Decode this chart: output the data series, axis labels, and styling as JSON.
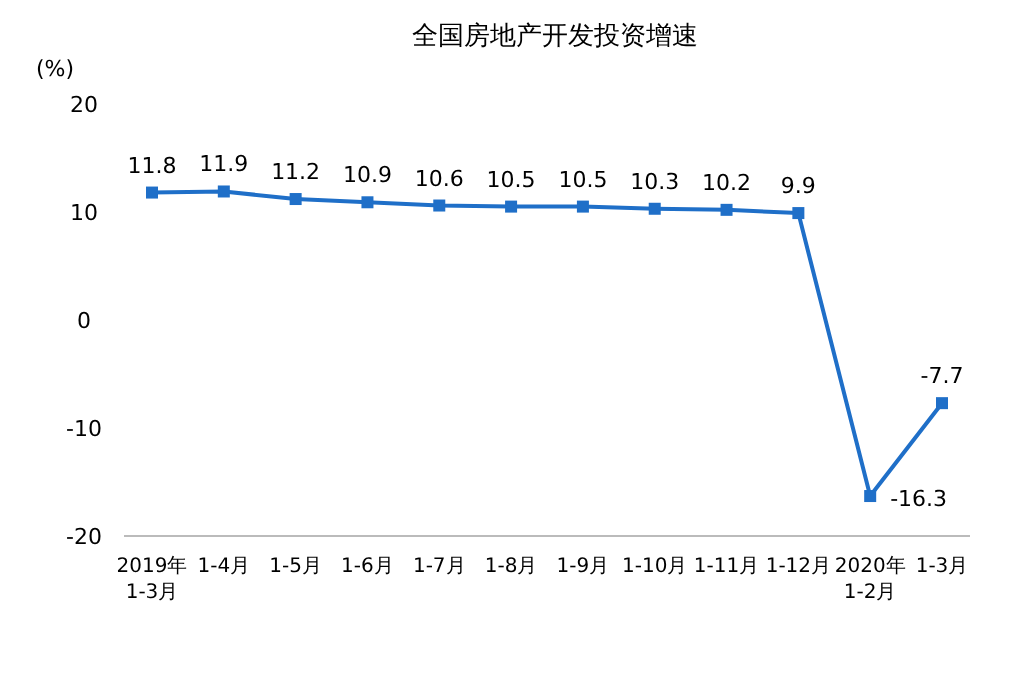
{
  "chart_data": {
    "type": "line",
    "title": "全国房地产开发投资增速",
    "ylabel": "(%)",
    "categories": [
      "2019年\n1-3月",
      "1-4月",
      "1-5月",
      "1-6月",
      "1-7月",
      "1-8月",
      "1-9月",
      "1-10月",
      "1-11月",
      "1-12月",
      "2020年\n1-2月",
      "1-3月"
    ],
    "series": [
      {
        "color": "#1f6fc8",
        "values": [
          11.8,
          11.9,
          11.2,
          10.9,
          10.6,
          10.5,
          10.5,
          10.3,
          10.2,
          9.9,
          -16.3,
          -7.7
        ]
      }
    ],
    "ylim": [
      -20,
      20
    ],
    "yticks": [
      -20,
      -10,
      0,
      10,
      20
    ],
    "data_labels": true,
    "marker": "square"
  }
}
